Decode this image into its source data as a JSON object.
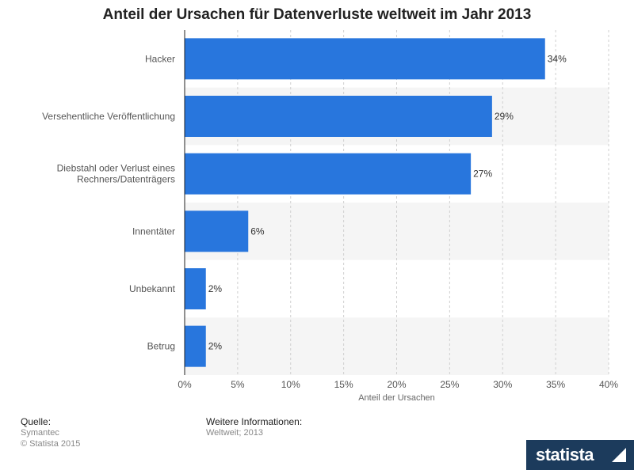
{
  "chart_data": {
    "type": "bar",
    "orientation": "horizontal",
    "title": "Anteil der Ursachen für Datenverluste weltweit im Jahr 2013",
    "categories": [
      "Hacker",
      "Versehentliche Veröffentlichung",
      "Diebstahl oder Verlust eines Rechners/Datenträgers",
      "Innentäter",
      "Unbekannt",
      "Betrug"
    ],
    "category_lines": [
      [
        "Hacker"
      ],
      [
        "Versehentliche Veröffentlichung"
      ],
      [
        "Diebstahl oder Verlust eines",
        "Rechners/Datenträgers"
      ],
      [
        "Innentäter"
      ],
      [
        "Unbekannt"
      ],
      [
        "Betrug"
      ]
    ],
    "values": [
      34,
      29,
      27,
      6,
      2,
      2
    ],
    "value_labels": [
      "34%",
      "29%",
      "27%",
      "6%",
      "2%",
      "2%"
    ],
    "xlabel": "Anteil der Ursachen",
    "ylabel": "",
    "xlim": [
      0,
      40
    ],
    "xticks": [
      0,
      5,
      10,
      15,
      20,
      25,
      30,
      35,
      40
    ],
    "xtick_labels": [
      "0%",
      "5%",
      "10%",
      "15%",
      "20%",
      "25%",
      "30%",
      "35%",
      "40%"
    ],
    "grid": true,
    "bar_color": "#2876dd",
    "band_color": "#f5f5f5"
  },
  "footer": {
    "source_heading": "Quelle:",
    "source_lines": [
      "Symantec",
      "© Statista 2015"
    ],
    "info_heading": "Weitere Informationen:",
    "info_lines": [
      "Weltweit; 2013"
    ],
    "brand": "statista"
  }
}
